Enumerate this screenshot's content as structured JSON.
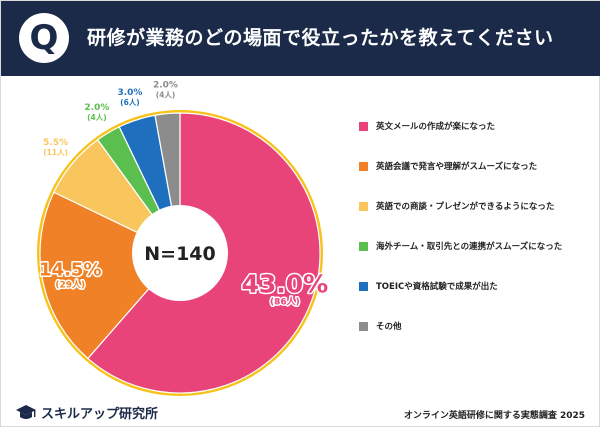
{
  "header": {
    "badge": "Q",
    "question": "研修が業務のどの場面で役立ったかを教えてください"
  },
  "chart_data": {
    "type": "pie",
    "center_label": "N=140",
    "colors": {
      "ring": "#f7c21c",
      "label_outline": "#ffffff",
      "center": "#ffffff"
    },
    "slices": [
      {
        "label": "英文メールの作成が楽になった",
        "percent_text": "43.0%",
        "count_text": "(86人)",
        "value": 43.0,
        "color": "#e8447a"
      },
      {
        "label": "英語会議で発言や理解がスムーズになった",
        "percent_text": "14.5%",
        "count_text": "(29人)",
        "value": 14.5,
        "color": "#f08126"
      },
      {
        "label": "英語での商談・プレゼンができるようになった",
        "percent_text": "5.5%",
        "count_text": "(11人)",
        "value": 5.5,
        "color": "#f8c65c"
      },
      {
        "label": "海外チーム・取引先との連携がスムーズになった",
        "percent_text": "2.0%",
        "count_text": "(4人)",
        "value": 2.0,
        "color": "#5bbf4f"
      },
      {
        "label": "TOEICや資格試験で成果が出た",
        "percent_text": "3.0%",
        "count_text": "(6人)",
        "value": 3.0,
        "color": "#1f6fbf"
      },
      {
        "label": "その他",
        "percent_text": "2.0%",
        "count_text": "(4人)",
        "value": 2.0,
        "color": "#8c8c8c"
      }
    ]
  },
  "footer": {
    "logo_text": "スキルアップ研究所",
    "source": "オンライン英語研修に関する実態調査 2025"
  }
}
